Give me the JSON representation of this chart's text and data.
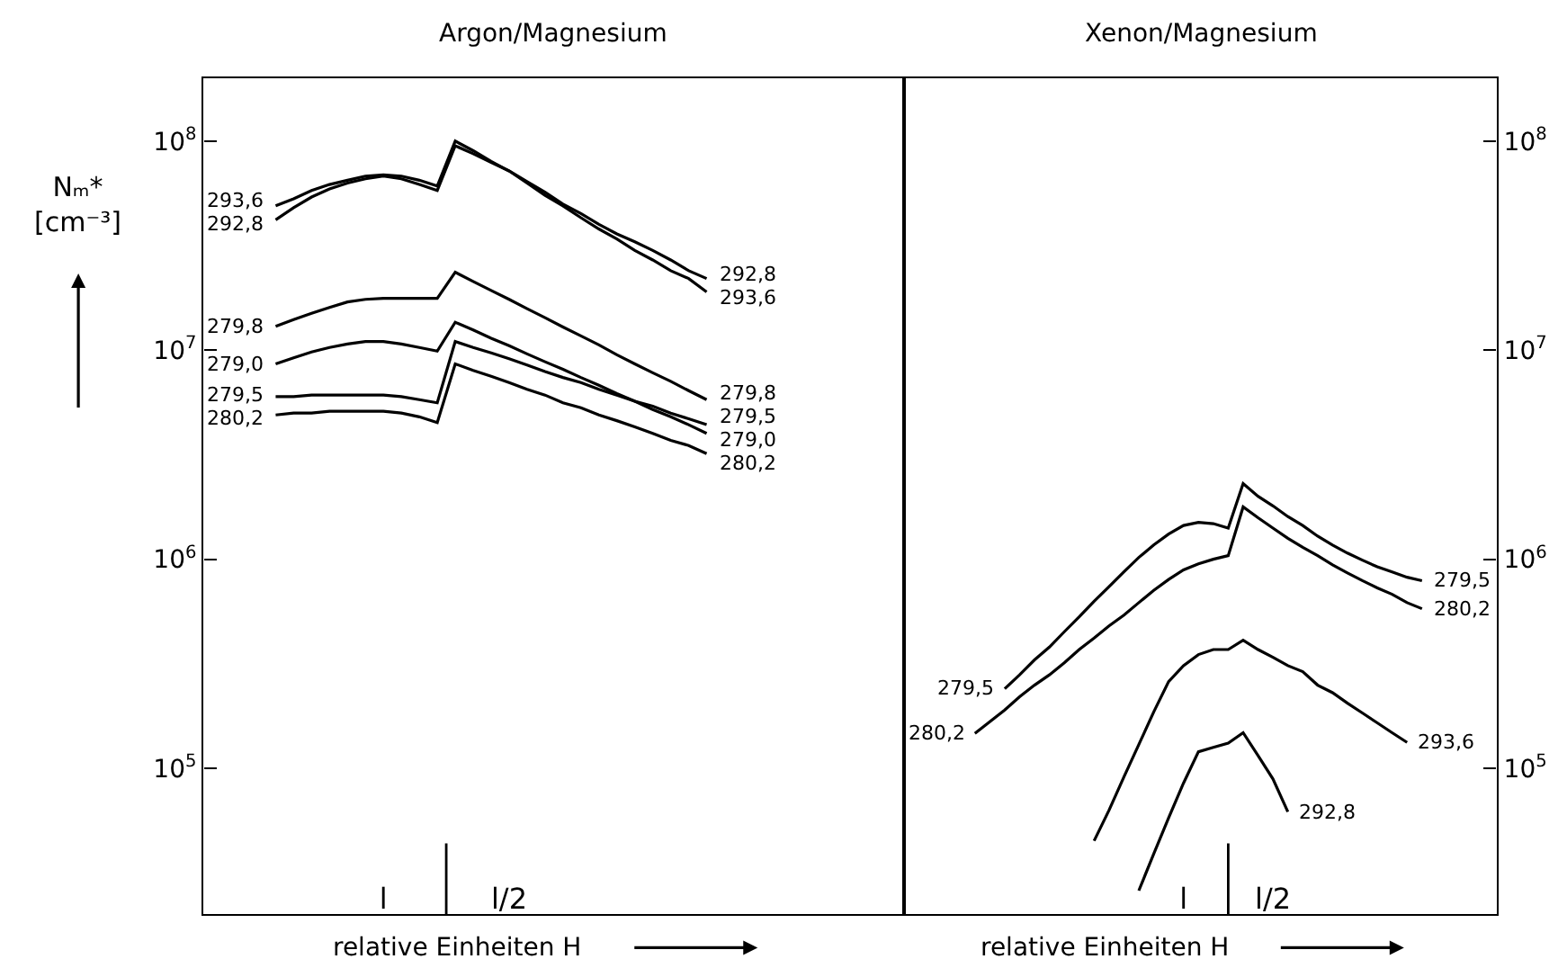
{
  "chart_data": [
    {
      "type": "line",
      "title": "Argon/Magnesium",
      "xlabel": "relative Einheiten H",
      "ylabel": "Nₘ* [cm⁻³]",
      "log": "y",
      "categories": [
        null,
        null,
        null,
        null,
        null,
        null,
        null,
        null,
        null,
        null,
        "l",
        null,
        null,
        null,
        null,
        null,
        null,
        "l/2",
        null,
        null,
        null,
        null,
        null,
        null,
        null,
        null,
        null,
        null,
        null,
        null,
        null,
        null,
        null,
        null,
        null,
        null,
        null,
        null,
        null,
        null
      ],
      "ylim": [
        20000,
        200000000
      ],
      "yticks": [
        {
          "value": 100000,
          "label": "10$^{5}$"
        },
        {
          "value": 1000000,
          "label": "10$^{6}$"
        },
        {
          "value": 10000000,
          "label": "10$^{7}$"
        },
        {
          "value": 100000000,
          "label": "10$^{8}$"
        }
      ],
      "series": [
        {
          "name": "293,6",
          "color": "#000000",
          "values": [
            null,
            null,
            null,
            null,
            49000000,
            53000000,
            58000000,
            62000000,
            65000000,
            68000000,
            69000000,
            68000000,
            65000000,
            61000000,
            100000000,
            90000000,
            80000000,
            72000000,
            63000000,
            55000000,
            49000000,
            43000000,
            38000000,
            34000000,
            30000000,
            27000000,
            24000000,
            22000000,
            19000000,
            null,
            null,
            null,
            null,
            null,
            null,
            null,
            null,
            null,
            null,
            null
          ]
        },
        {
          "name": "292,8",
          "color": "#000000",
          "values": [
            null,
            null,
            null,
            null,
            42000000,
            48000000,
            54000000,
            59000000,
            63000000,
            66000000,
            68000000,
            66000000,
            62000000,
            58000000,
            95000000,
            87000000,
            79000000,
            72000000,
            64000000,
            57000000,
            50000000,
            45000000,
            40000000,
            36000000,
            33000000,
            30000000,
            27000000,
            24000000,
            22000000,
            null,
            null,
            null,
            null,
            null,
            null,
            null,
            null,
            null,
            null,
            null
          ]
        },
        {
          "name": "279,8",
          "color": "#000000",
          "values": [
            null,
            null,
            null,
            null,
            13000000,
            14000000,
            15000000,
            16000000,
            17000000,
            17500000,
            17700000,
            17700000,
            17700000,
            17700000,
            23600000,
            21300000,
            19300000,
            17500000,
            15800000,
            14300000,
            12900000,
            11700000,
            10600000,
            9500000,
            8600000,
            7800000,
            7100000,
            6400000,
            5800000,
            null,
            null,
            null,
            null,
            null,
            null,
            null,
            null,
            null,
            null,
            null
          ]
        },
        {
          "name": "279,0",
          "color": "#000000",
          "values": [
            null,
            null,
            null,
            null,
            8600000,
            9200000,
            9800000,
            10300000,
            10700000,
            11000000,
            11000000,
            10700000,
            10300000,
            9900000,
            13600000,
            12500000,
            11400000,
            10500000,
            9600000,
            8800000,
            8100000,
            7400000,
            6800000,
            6200000,
            5700000,
            5200000,
            4800000,
            4400000,
            4000000,
            null,
            null,
            null,
            null,
            null,
            null,
            null,
            null,
            null,
            null,
            null
          ]
        },
        {
          "name": "279,5",
          "color": "#000000",
          "values": [
            null,
            null,
            null,
            null,
            6000000,
            6000000,
            6100000,
            6100000,
            6100000,
            6100000,
            6100000,
            6000000,
            5800000,
            5600000,
            11000000,
            10300000,
            9700000,
            9100000,
            8500000,
            7900000,
            7400000,
            7000000,
            6500000,
            6100000,
            5700000,
            5400000,
            5000000,
            4700000,
            4400000,
            null,
            null,
            null,
            null,
            null,
            null,
            null,
            null,
            null,
            null,
            null
          ]
        },
        {
          "name": "280,2",
          "color": "#000000",
          "values": [
            null,
            null,
            null,
            null,
            4900000,
            5000000,
            5000000,
            5100000,
            5100000,
            5100000,
            5100000,
            5000000,
            4800000,
            4500000,
            8600000,
            8000000,
            7500000,
            7000000,
            6500000,
            6100000,
            5600000,
            5300000,
            4900000,
            4600000,
            4300000,
            4000000,
            3700000,
            3500000,
            3200000,
            null,
            null,
            null,
            null,
            null,
            null,
            null,
            null,
            null,
            null,
            null
          ]
        }
      ]
    },
    {
      "type": "line",
      "title": "Xenon/Magnesium",
      "xlabel": "relative Einheiten H",
      "log": "y2",
      "categories": [
        null,
        null,
        null,
        null,
        null,
        null,
        null,
        null,
        null,
        null,
        null,
        null,
        null,
        null,
        null,
        null,
        null,
        null,
        "l",
        null,
        null,
        null,
        null,
        null,
        "l/2",
        null,
        null,
        null,
        null,
        null,
        null,
        null,
        null,
        null,
        null,
        null,
        null,
        null,
        null,
        null
      ],
      "y2lim": [
        20000,
        200000000
      ],
      "y2ticks": [
        {
          "value": 100000,
          "label": "10$^{5}$"
        },
        {
          "value": 1000000,
          "label": "10$^{6}$"
        },
        {
          "value": 10000000,
          "label": "10$^{7}$"
        },
        {
          "value": 100000000,
          "label": "10$^{8}$"
        }
      ],
      "series": [
        {
          "name": "279,5",
          "color": "#000000",
          "axis": "y2",
          "values": [
            null,
            null,
            null,
            null,
            null,
            null,
            240000,
            280000,
            330000,
            380000,
            450000,
            530000,
            630000,
            740000,
            870000,
            1020000,
            1170000,
            1320000,
            1450000,
            1500000,
            1480000,
            1410000,
            2300000,
            2000000,
            1800000,
            1600000,
            1450000,
            1290000,
            1170000,
            1070000,
            990000,
            920000,
            870000,
            820000,
            790000,
            null,
            null,
            null,
            null,
            null
          ]
        },
        {
          "name": "280,2",
          "color": "#000000",
          "axis": "y2",
          "values": [
            null,
            null,
            null,
            null,
            147000,
            167000,
            190000,
            220000,
            250000,
            280000,
            320000,
            370000,
            420000,
            480000,
            540000,
            620000,
            710000,
            800000,
            890000,
            950000,
            1000000,
            1040000,
            1780000,
            1580000,
            1410000,
            1260000,
            1140000,
            1040000,
            940000,
            860000,
            790000,
            730000,
            680000,
            620000,
            580000,
            null,
            null,
            null,
            null,
            null
          ]
        },
        {
          "name": "293,6",
          "color": "#000000",
          "axis": "y2",
          "values": [
            null,
            null,
            null,
            null,
            null,
            null,
            null,
            null,
            null,
            null,
            null,
            null,
            45000,
            63000,
            91000,
            130000,
            186000,
            260000,
            310000,
            350000,
            370000,
            370000,
            410000,
            370000,
            340000,
            310000,
            290000,
            250000,
            230000,
            205000,
            184000,
            165000,
            148000,
            133000,
            null,
            null,
            null,
            null,
            null,
            null
          ]
        },
        {
          "name": "292,8",
          "color": "#000000",
          "axis": "y2",
          "values": [
            null,
            null,
            null,
            null,
            null,
            null,
            null,
            null,
            null,
            null,
            null,
            null,
            null,
            null,
            null,
            26000,
            39000,
            58000,
            85000,
            120000,
            126000,
            132000,
            148000,
            115000,
            89000,
            62000,
            null,
            null,
            null,
            null,
            null,
            null,
            null,
            null,
            null,
            null,
            null,
            null,
            null,
            null
          ]
        }
      ]
    }
  ]
}
